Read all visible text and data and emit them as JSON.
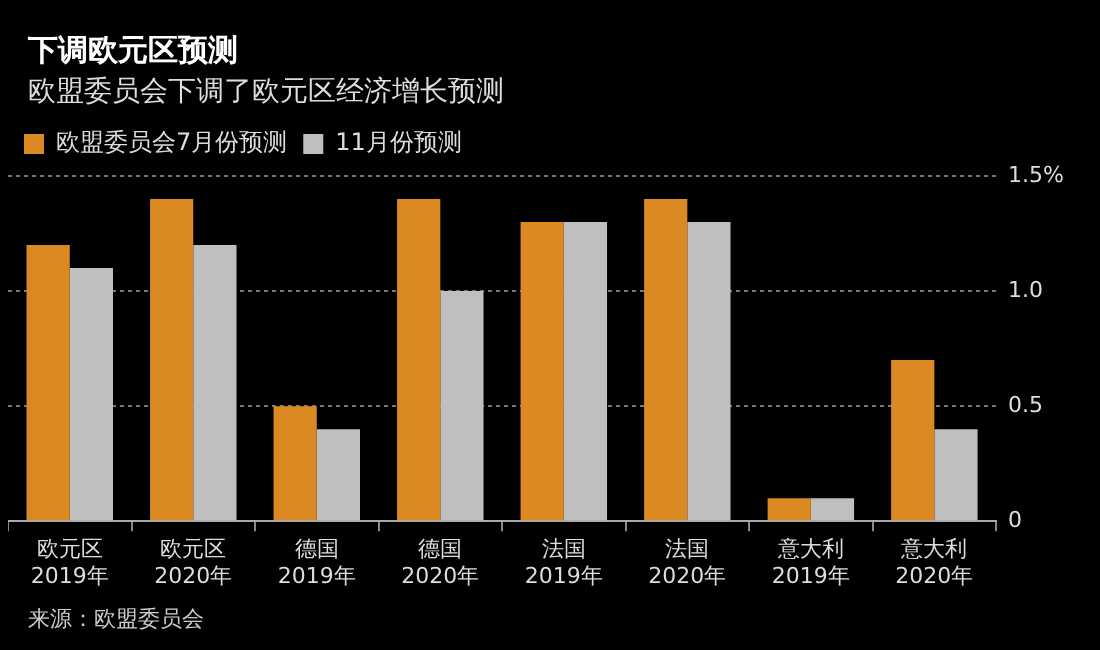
{
  "chart_data": {
    "type": "bar",
    "title": "下调欧元区预测",
    "subtitle": "欧盟委员会下调了欧元区经济增长预测",
    "categories": [
      "欧元区\n2019年",
      "欧元区\n2020年",
      "德国\n2019年",
      "德国\n2020年",
      "法国\n2019年",
      "法国\n2020年",
      "意大利\n2019年",
      "意大利\n2020年"
    ],
    "series": [
      {
        "name": "欧盟委员会7月份预测",
        "color": "#db8a23",
        "values": [
          1.2,
          1.4,
          0.5,
          1.4,
          1.3,
          1.4,
          0.1,
          0.7
        ]
      },
      {
        "name": "11月份预测",
        "color": "#bfbfbf",
        "values": [
          1.1,
          1.2,
          0.4,
          1.0,
          1.3,
          1.3,
          0.1,
          0.4
        ]
      }
    ],
    "ylim": [
      0,
      1.5
    ],
    "yticks": [
      0,
      {
        "value": 0.5,
        "label": "0.5"
      },
      {
        "value": 1,
        "label": "1.0"
      },
      {
        "value": 1.5,
        "label": "1.5%"
      }
    ],
    "grid": "y",
    "legend": "top left",
    "annotations": [
      "来源：欧盟委员会"
    ]
  }
}
